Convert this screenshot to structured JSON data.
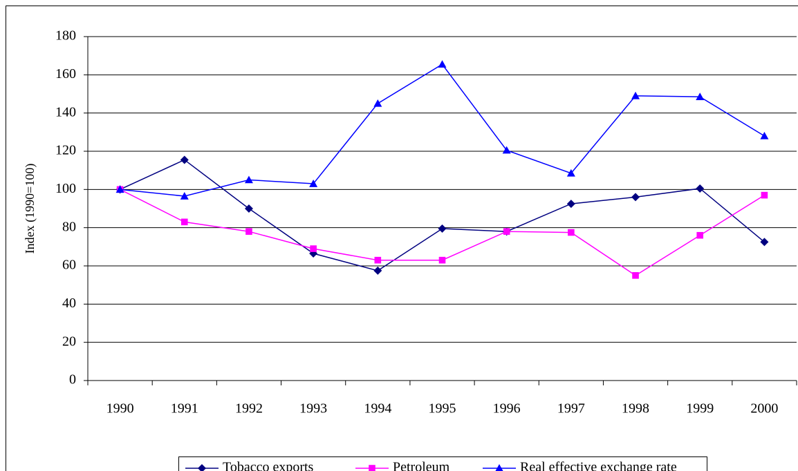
{
  "chart_data": {
    "type": "line",
    "y_label": "Index (1990=100)",
    "categories": [
      "1990",
      "1991",
      "1992",
      "1993",
      "1994",
      "1995",
      "1996",
      "1997",
      "1998",
      "1999",
      "2000"
    ],
    "series": [
      {
        "name": "Tobacco exports",
        "color": "#000080",
        "marker": "diamond",
        "values": [
          100,
          115.5,
          90,
          66.5,
          57.5,
          79.5,
          78,
          92.5,
          96,
          100.5,
          72.5
        ]
      },
      {
        "name": "Petroleum",
        "color": "#ff00ff",
        "marker": "square",
        "values": [
          100,
          83,
          78,
          69,
          63,
          63,
          78,
          77.5,
          55,
          76,
          97
        ]
      },
      {
        "name": "Real effective exchange rate",
        "color": "#0000ff",
        "marker": "triangle",
        "values": [
          100,
          96.5,
          105,
          103,
          145,
          165.5,
          120.5,
          108.5,
          149,
          148.5,
          128
        ]
      }
    ],
    "ylim": [
      0,
      180
    ],
    "yticks": [
      0,
      20,
      40,
      60,
      80,
      100,
      120,
      140,
      160,
      180
    ],
    "grid": true,
    "legend": "bottom"
  }
}
